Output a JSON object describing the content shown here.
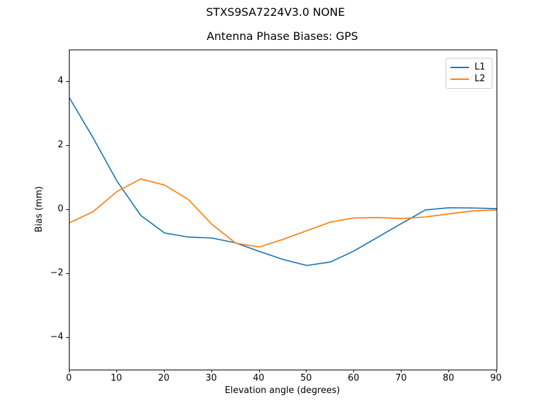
{
  "figure": {
    "suptitle": "STXS9SA7224V3.0 NONE",
    "title": "Antenna Phase Biases: GPS",
    "xlabel": "Elevation angle (degrees)",
    "ylabel": "Bias (mm)"
  },
  "chart_data": {
    "type": "line",
    "suptitle": "STXS9SA7224V3.0 NONE",
    "title": "Antenna Phase Biases: GPS",
    "xlabel": "Elevation angle (degrees)",
    "ylabel": "Bias (mm)",
    "xlim": [
      0,
      90
    ],
    "ylim": [
      -5,
      5
    ],
    "xticks": [
      0,
      10,
      20,
      30,
      40,
      50,
      60,
      70,
      80,
      90
    ],
    "xtick_labels": [
      "0",
      "10",
      "20",
      "30",
      "40",
      "50",
      "60",
      "70",
      "80",
      "90"
    ],
    "yticks": [
      -4,
      -2,
      0,
      2,
      4
    ],
    "ytick_labels": [
      "−4",
      "−2",
      "0",
      "2",
      "4"
    ],
    "grid": false,
    "legend_position": "upper right",
    "background_color": "#ffffff",
    "x": [
      0,
      5,
      10,
      15,
      20,
      25,
      30,
      35,
      40,
      45,
      50,
      55,
      60,
      65,
      70,
      75,
      80,
      85,
      90
    ],
    "series": [
      {
        "name": "L1",
        "color": "#1f77b4",
        "values": [
          3.5,
          2.25,
          0.9,
          -0.17,
          -0.72,
          -0.85,
          -0.88,
          -1.03,
          -1.3,
          -1.55,
          -1.74,
          -1.63,
          -1.28,
          -0.85,
          -0.42,
          0.0,
          0.07,
          0.06,
          0.04
        ]
      },
      {
        "name": "L2",
        "color": "#ff7f0e",
        "values": [
          -0.4,
          -0.05,
          0.58,
          0.97,
          0.78,
          0.33,
          -0.45,
          -1.04,
          -1.16,
          -0.92,
          -0.65,
          -0.38,
          -0.25,
          -0.24,
          -0.27,
          -0.22,
          -0.12,
          -0.03,
          0.0
        ]
      }
    ]
  }
}
